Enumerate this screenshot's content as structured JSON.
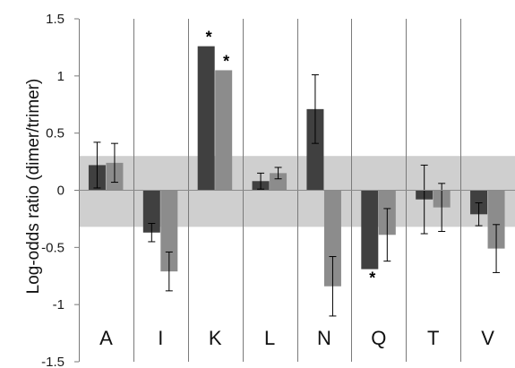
{
  "chart_data": {
    "type": "bar",
    "ylabel": "Log-odds ratio (dimer/trimer)",
    "ylim": [
      -1.5,
      1.5
    ],
    "yticks": [
      1.5,
      1,
      0.5,
      0,
      -0.5,
      -1,
      -1.5
    ],
    "ytick_labels": [
      "1.5",
      "1",
      "0.5",
      "0",
      "-0.5",
      "-1",
      "-1.5"
    ],
    "categories": [
      "A",
      "I",
      "K",
      "L",
      "N",
      "Q",
      "T",
      "V"
    ],
    "significance_marker": "*",
    "band": {
      "low": -0.32,
      "high": 0.3,
      "color": "#cfcfcf"
    },
    "series": [
      {
        "color": "#404040",
        "values": [
          0.22,
          -0.37,
          1.26,
          0.08,
          0.71,
          -0.69,
          -0.08,
          -0.21
        ],
        "errors": [
          0.2,
          0.08,
          null,
          0.07,
          0.3,
          null,
          0.3,
          0.1
        ],
        "significant": [
          false,
          false,
          true,
          false,
          false,
          true,
          false,
          false
        ]
      },
      {
        "color": "#8c8c8c",
        "values": [
          0.24,
          -0.71,
          1.05,
          0.15,
          -0.84,
          -0.39,
          -0.15,
          -0.51
        ],
        "errors": [
          0.17,
          0.17,
          null,
          0.05,
          0.26,
          0.23,
          0.21,
          0.21
        ],
        "significant": [
          false,
          false,
          true,
          false,
          false,
          false,
          false,
          false
        ]
      }
    ],
    "grid": false,
    "legend": "none"
  }
}
